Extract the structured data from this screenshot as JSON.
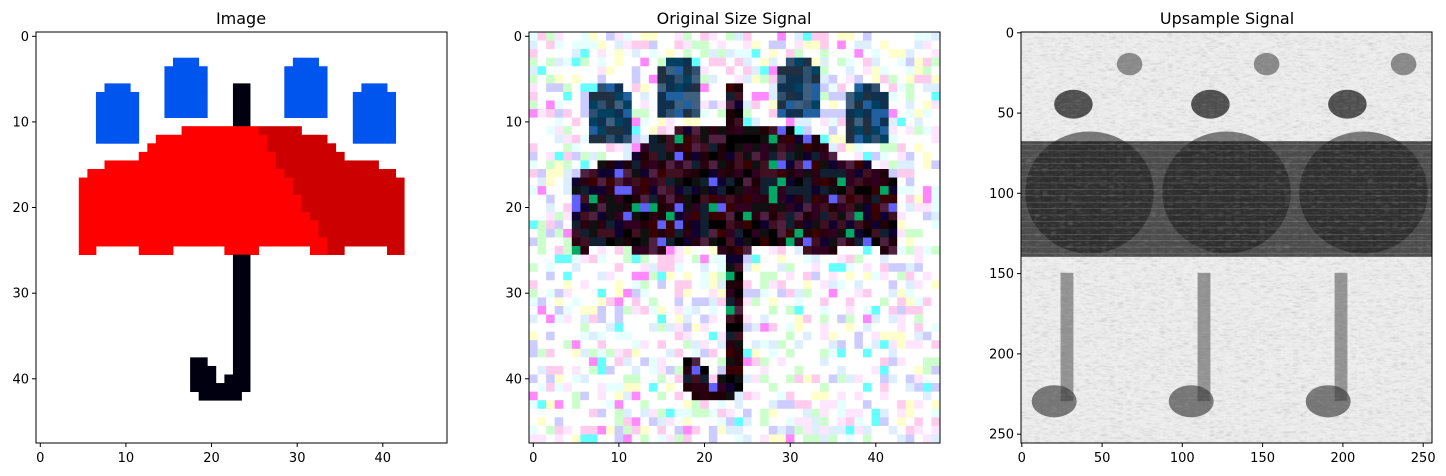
{
  "panels": [
    {
      "title": "Image",
      "x_ticks": [
        "0",
        "10",
        "20",
        "30",
        "40"
      ],
      "y_ticks": [
        "0",
        "10",
        "20",
        "30",
        "40"
      ],
      "x_range": [
        -0.5,
        47.5
      ],
      "y_range": [
        -0.5,
        47.5
      ],
      "content": "pixel-art umbrella with four blue raindrops on white background"
    },
    {
      "title": "Original Size Signal",
      "x_ticks": [
        "0",
        "10",
        "20",
        "30",
        "40"
      ],
      "y_ticks": [
        "0",
        "10",
        "20",
        "30",
        "40"
      ],
      "x_range": [
        -0.5,
        47.5
      ],
      "y_range": [
        -0.5,
        47.5
      ],
      "content": "noisy colored version of umbrella image"
    },
    {
      "title": "Upsample Signal",
      "x_ticks": [
        "0",
        "50",
        "100",
        "150",
        "200",
        "250"
      ],
      "y_ticks": [
        "0",
        "50",
        "100",
        "150",
        "200",
        "250"
      ],
      "x_range": [
        -0.5,
        255.5
      ],
      "y_range": [
        -0.5,
        255.5
      ],
      "content": "grayscale upsampled signal showing 3x3 tiled umbrella pattern"
    }
  ],
  "colors": {
    "umbrella": "#ff0000",
    "umbrella_shade": "#cc0000",
    "drops": "#0055ee",
    "handle": "#000010"
  }
}
